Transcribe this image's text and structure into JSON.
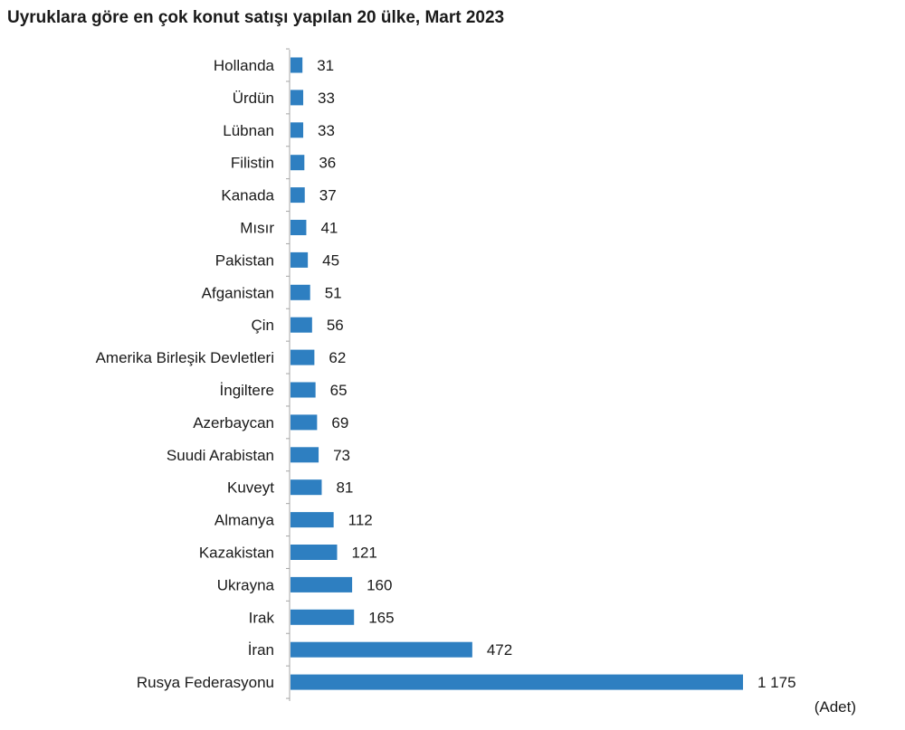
{
  "chart_data": {
    "type": "bar",
    "orientation": "horizontal",
    "title": "Uyruklara göre en çok konut satışı yapılan 20 ülke, Mart 2023",
    "unit_label": "(Adet)",
    "bar_color": "#2e7fc1",
    "grid": false,
    "categories": [
      "Hollanda",
      "Ürdün",
      "Lübnan",
      "Filistin",
      "Kanada",
      "Mısır",
      "Pakistan",
      "Afganistan",
      "Çin",
      "Amerika Birleşik Devletleri",
      "İngiltere",
      "Azerbaycan",
      "Suudi Arabistan",
      "Kuveyt",
      "Almanya",
      "Kazakistan",
      "Ukrayna",
      "Irak",
      "İran",
      "Rusya Federasyonu"
    ],
    "values": [
      31,
      33,
      33,
      36,
      37,
      41,
      45,
      51,
      56,
      62,
      65,
      69,
      73,
      81,
      112,
      121,
      160,
      165,
      472,
      1175
    ],
    "value_labels": [
      "31",
      "33",
      "33",
      "36",
      "37",
      "41",
      "45",
      "51",
      "56",
      "62",
      "65",
      "69",
      "73",
      "81",
      "112",
      "121",
      "160",
      "165",
      "472",
      "1 175"
    ]
  }
}
